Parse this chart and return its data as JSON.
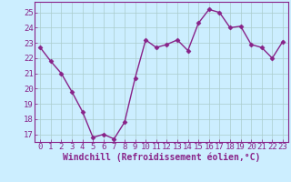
{
  "x": [
    0,
    1,
    2,
    3,
    4,
    5,
    6,
    7,
    8,
    9,
    10,
    11,
    12,
    13,
    14,
    15,
    16,
    17,
    18,
    19,
    20,
    21,
    22,
    23
  ],
  "y": [
    22.7,
    21.8,
    21.0,
    19.8,
    18.5,
    16.8,
    17.0,
    16.7,
    17.8,
    20.7,
    23.2,
    22.7,
    22.9,
    23.2,
    22.5,
    24.3,
    25.2,
    25.0,
    24.0,
    24.1,
    22.9,
    22.7,
    22.0,
    23.1
  ],
  "line_color": "#882288",
  "marker": "D",
  "markersize": 2.5,
  "linewidth": 1.0,
  "bg_color": "#cceeff",
  "plot_bg_color": "#cceeff",
  "grid_color": "#aacccc",
  "xlabel": "Windchill (Refroidissement éolien,°C)",
  "xlabel_fontsize": 7,
  "xlabel_color": "#882288",
  "xtick_labels": [
    "0",
    "1",
    "2",
    "3",
    "4",
    "5",
    "6",
    "7",
    "8",
    "9",
    "10",
    "11",
    "12",
    "13",
    "14",
    "15",
    "16",
    "17",
    "18",
    "19",
    "20",
    "21",
    "22",
    "23"
  ],
  "ytick_labels": [
    "17",
    "18",
    "19",
    "20",
    "21",
    "22",
    "23",
    "24",
    "25"
  ],
  "ytick_vals": [
    17,
    18,
    19,
    20,
    21,
    22,
    23,
    24,
    25
  ],
  "ylim": [
    16.5,
    25.7
  ],
  "xlim": [
    -0.5,
    23.5
  ],
  "tick_fontsize": 6.5,
  "tick_color": "#882288",
  "spine_color": "#882288",
  "border_color": "#882288"
}
